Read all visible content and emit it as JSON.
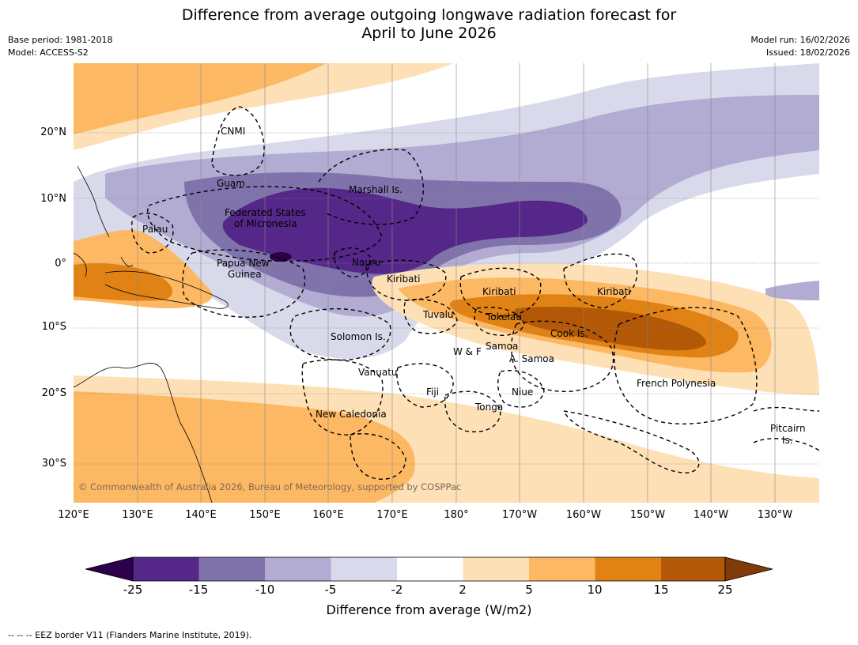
{
  "title": {
    "line1": "Difference from average outgoing longwave radiation forecast for",
    "line2": "April to June 2026"
  },
  "meta": {
    "base_period": "Base period: 1981-2018",
    "model": "Model: ACCESS-S2",
    "model_run": "Model run: 16/02/2026",
    "issued": "Issued: 18/02/2026"
  },
  "axes": {
    "latitude_labels": [
      "20°N",
      "10°N",
      "0°",
      "10°S",
      "20°S",
      "30°S"
    ],
    "longitude_labels": [
      "120°E",
      "130°E",
      "140°E",
      "150°E",
      "160°E",
      "170°E",
      "180°",
      "170°W",
      "160°W",
      "150°W",
      "140°W",
      "130°W"
    ]
  },
  "regions": [
    {
      "name": "CNMI"
    },
    {
      "name": "Guam"
    },
    {
      "name": "Marshall Is."
    },
    {
      "name": "Federated States"
    },
    {
      "name": "of Micronesia"
    },
    {
      "name": "Palau"
    },
    {
      "name": "Papua New"
    },
    {
      "name": "Guinea"
    },
    {
      "name": "Nauru"
    },
    {
      "name": "Kiribati"
    },
    {
      "name": "Kiribati"
    },
    {
      "name": "Kiribati"
    },
    {
      "name": "Tuvalu"
    },
    {
      "name": "Tokelau"
    },
    {
      "name": "Cook Is."
    },
    {
      "name": "Solomon Is."
    },
    {
      "name": "W & F"
    },
    {
      "name": "Samoa"
    },
    {
      "name": "A. Samoa"
    },
    {
      "name": "Vanuatu"
    },
    {
      "name": "Fiji"
    },
    {
      "name": "Niue"
    },
    {
      "name": "Tonga"
    },
    {
      "name": "French Polynesia"
    },
    {
      "name": "New Caledonia"
    },
    {
      "name": "Pitcairn"
    },
    {
      "name": "Is."
    }
  ],
  "copyright": "© Commonwealth of Australia 2026, Bureau of Meteorology, supported by COSPPac",
  "colorbar": {
    "ticks": [
      "-25",
      "-15",
      "-10",
      "-5",
      "-2",
      "2",
      "5",
      "10",
      "15",
      "25"
    ],
    "colors": {
      "under": "#2d004b",
      "bins": [
        "#542788",
        "#8073ac",
        "#b2abd2",
        "#d8daeb",
        "#ffffff",
        "#fee0b6",
        "#fdb863",
        "#e08214",
        "#b35806"
      ],
      "over": "#7f3b08"
    },
    "label": "Difference from average (W/m2)"
  },
  "footnote": "--  --  -- EEZ border V11 (Flanders Marine Institute, 2019)."
}
